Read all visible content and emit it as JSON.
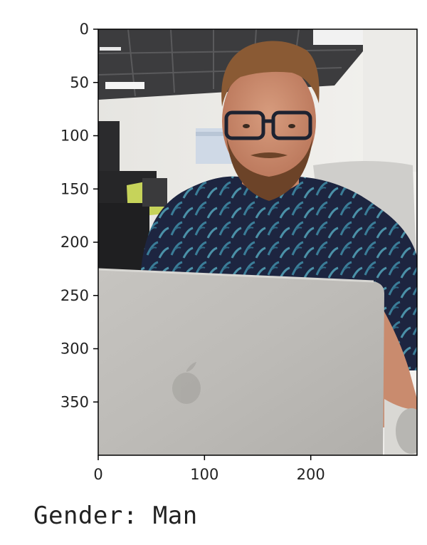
{
  "chart_data": {
    "type": "image",
    "title": "",
    "xlabel": "",
    "ylabel": "",
    "xlim": [
      0,
      299
    ],
    "ylim": [
      399,
      0
    ],
    "x_ticks": [
      0,
      100,
      200
    ],
    "y_ticks": [
      0,
      50,
      100,
      150,
      200,
      250,
      300,
      350
    ],
    "x_tick_labels": [
      "0",
      "100",
      "200"
    ],
    "y_tick_labels": [
      "0",
      "50",
      "100",
      "150",
      "200",
      "250",
      "300",
      "350"
    ],
    "image_description_icon": "photo-of-man-with-glasses-and-laptop"
  },
  "output": {
    "prefix": "Gender: ",
    "value": "Man"
  }
}
